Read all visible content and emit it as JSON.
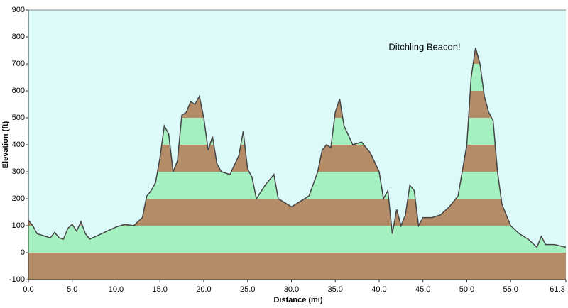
{
  "chart_data": {
    "type": "area",
    "x_label": "Distance (mi)",
    "y_label": "Elevation (ft)",
    "annotation": "Ditchling Beacon!",
    "x": [
      0,
      0.5,
      1,
      2,
      2.5,
      3,
      3.5,
      4,
      4.5,
      5,
      5.5,
      6,
      6.5,
      7,
      8,
      9,
      10,
      11,
      12,
      13,
      13.5,
      14,
      14.5,
      15,
      15.5,
      16,
      16.5,
      17,
      17.5,
      18,
      18.5,
      19,
      19.5,
      20,
      20.5,
      21,
      21.5,
      22,
      23,
      24,
      24.5,
      25,
      25.5,
      26,
      27,
      28,
      28.5,
      29,
      30,
      31,
      32,
      33,
      33.5,
      34,
      34.5,
      35,
      35.5,
      36,
      37,
      38,
      39,
      40,
      40.5,
      41,
      41.5,
      42,
      42.5,
      43,
      43.5,
      44,
      44.5,
      45,
      46,
      47,
      48,
      49,
      50,
      50.5,
      51,
      51.5,
      52,
      52.5,
      53,
      53.5,
      54,
      55,
      56,
      57,
      58,
      58.5,
      59,
      60,
      61.3
    ],
    "values": [
      120,
      100,
      70,
      60,
      55,
      75,
      55,
      50,
      90,
      105,
      80,
      115,
      70,
      50,
      65,
      80,
      95,
      105,
      100,
      130,
      210,
      230,
      260,
      350,
      470,
      440,
      300,
      340,
      510,
      520,
      560,
      550,
      580,
      500,
      380,
      430,
      330,
      300,
      290,
      360,
      450,
      310,
      280,
      200,
      250,
      290,
      200,
      190,
      170,
      190,
      210,
      300,
      380,
      400,
      390,
      520,
      570,
      470,
      400,
      410,
      370,
      300,
      200,
      230,
      70,
      160,
      100,
      140,
      250,
      230,
      100,
      130,
      130,
      140,
      170,
      210,
      400,
      650,
      760,
      700,
      580,
      520,
      490,
      300,
      180,
      100,
      70,
      50,
      20,
      60,
      30,
      30,
      20
    ],
    "xlim": [
      0,
      61.3
    ],
    "ylim": [
      -100,
      900
    ],
    "xticks": [
      {
        "value": 0,
        "label": "0.0"
      },
      {
        "value": 5,
        "label": "5.0"
      },
      {
        "value": 10,
        "label": "10.0"
      },
      {
        "value": 15,
        "label": "15.0"
      },
      {
        "value": 20,
        "label": "20.0"
      },
      {
        "value": 25,
        "label": "25.0"
      },
      {
        "value": 30,
        "label": "30.0"
      },
      {
        "value": 35,
        "label": "35.0"
      },
      {
        "value": 40,
        "label": "40.0"
      },
      {
        "value": 45,
        "label": "45.0"
      },
      {
        "value": 50,
        "label": "50.0"
      },
      {
        "value": 55,
        "label": "55.0"
      },
      61.3
    ],
    "yticks": [
      -100,
      0,
      100,
      200,
      300,
      400,
      500,
      600,
      700,
      800,
      900
    ],
    "line_color": "#444444",
    "band_colors": [
      "#b48c68",
      "#a4f0c0"
    ],
    "background": "#dcfafa"
  }
}
